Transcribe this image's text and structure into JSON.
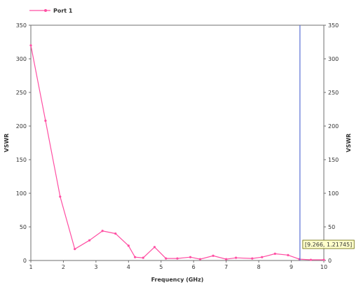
{
  "colors": {
    "series": "#ff4fa3",
    "marker_line": "#5a6fd6",
    "annotation_bg": "#ffffcc",
    "annotation_border": "#666600",
    "axis": "#6f6f6f"
  },
  "legend": {
    "icon": "line-with-marker-icon"
  },
  "chart_data": {
    "type": "line",
    "xlabel": "Frequency (GHz)",
    "ylabel_left": "VSWR",
    "ylabel_right": "VSWR",
    "xlim": [
      1,
      10
    ],
    "ylim": [
      0,
      350
    ],
    "x_ticks": [
      "1",
      "2",
      "3",
      "4",
      "5",
      "6",
      "7",
      "8",
      "9",
      "10"
    ],
    "y_ticks": [
      "0",
      "50",
      "100",
      "150",
      "200",
      "250",
      "300",
      "350"
    ],
    "grid": false,
    "legend_position": "top-left",
    "series": [
      {
        "name": "Port 1",
        "x": [
          1.0,
          1.45,
          1.9,
          2.35,
          2.8,
          3.2,
          3.6,
          4.0,
          4.2,
          4.45,
          4.8,
          5.15,
          5.5,
          5.9,
          6.2,
          6.6,
          7.0,
          7.3,
          7.8,
          8.1,
          8.5,
          8.9,
          9.25,
          9.6,
          10.0
        ],
        "y": [
          320,
          208,
          95,
          17,
          30,
          44,
          40,
          22,
          5,
          4,
          20,
          3,
          3,
          5,
          2,
          7,
          2,
          4,
          3,
          5,
          10,
          8,
          2,
          1,
          1
        ]
      }
    ],
    "marker": {
      "x": 9.266,
      "y": 1.21745,
      "label": "[9.266, 1.21745]"
    }
  }
}
